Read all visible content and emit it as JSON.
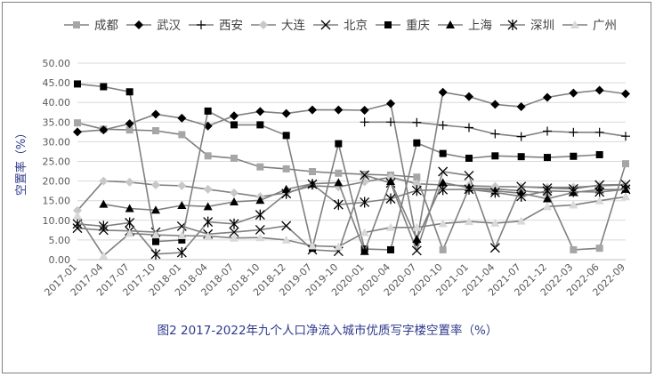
{
  "caption": "图2 2017-2022年九个人口净流入城市优质写字楼空置率（%）",
  "chart_data": {
    "type": "line",
    "title": "",
    "xlabel": "",
    "ylabel": "空置率（%）",
    "ylim": [
      0,
      50
    ],
    "yticks": [
      "0.00",
      "5.00",
      "10.00",
      "15.00",
      "20.00",
      "25.00",
      "30.00",
      "35.00",
      "40.00",
      "45.00",
      "50.00"
    ],
    "grid": true,
    "legend_position": "top",
    "categories": [
      "2017-01",
      "2017-04",
      "2017-07",
      "2017-10",
      "2018-01",
      "2018-04",
      "2018-07",
      "2018-10",
      "2018-12",
      "2019-07",
      "2019-10",
      "2020-01",
      "2020-04",
      "2020-07",
      "2020-10",
      "2021-01",
      "2021-04",
      "2021-07",
      "2021-12",
      "2022-03",
      "2022-06",
      "2022-09"
    ],
    "series": [
      {
        "name": "成都",
        "marker": "square",
        "color": "#a6a6a6",
        "values": [
          34.8,
          33.2,
          33.0,
          32.8,
          31.8,
          26.4,
          25.8,
          23.6,
          23.1,
          22.4,
          22.0,
          21.7,
          21.5,
          21.0,
          2.5,
          18.2,
          18.0,
          17.5,
          17.0,
          2.5,
          2.9,
          24.4
        ]
      },
      {
        "name": "武汉",
        "marker": "diamond",
        "color": "#000000",
        "values": [
          32.5,
          33.0,
          34.6,
          37.0,
          36.0,
          34.0,
          36.6,
          37.7,
          37.2,
          38.1,
          38.1,
          38.0,
          39.7,
          4.5,
          42.6,
          41.5,
          39.5,
          38.9,
          41.3,
          42.4,
          43.1,
          42.2
        ]
      },
      {
        "name": "西安",
        "marker": "plus",
        "color": "#000000",
        "values": [
          null,
          null,
          null,
          null,
          null,
          null,
          null,
          null,
          null,
          null,
          null,
          35.0,
          35.0,
          34.9,
          34.2,
          33.6,
          32.0,
          31.3,
          32.7,
          32.4,
          32.4,
          31.4
        ]
      },
      {
        "name": "大连",
        "marker": "diamond",
        "color": "#c8c8c8",
        "values": [
          12.5,
          20.0,
          19.7,
          19.0,
          18.8,
          17.9,
          17.0,
          16.0,
          17.0,
          18.8,
          18.5,
          19.8,
          21.0,
          19.3,
          19.0,
          18.8,
          18.6,
          18.5,
          18.4,
          18.4,
          18.8,
          19.0
        ]
      },
      {
        "name": "北京",
        "marker": "x",
        "color": "#000000",
        "values": [
          8.0,
          7.5,
          7.3,
          7.0,
          8.5,
          6.5,
          7.0,
          7.6,
          8.6,
          2.5,
          2.1,
          21.5,
          19.5,
          2.3,
          22.4,
          21.4,
          3.0,
          18.6,
          18.2,
          18.0,
          19.0,
          19.1
        ]
      },
      {
        "name": "重庆",
        "marker": "square",
        "color": "#000000",
        "values": [
          44.7,
          44.0,
          42.7,
          4.6,
          5.0,
          37.8,
          34.3,
          34.3,
          31.6,
          2.9,
          29.5,
          2.7,
          2.5,
          29.7,
          27.0,
          25.8,
          26.4,
          26.2,
          26.0,
          26.3,
          26.7,
          null
        ]
      },
      {
        "name": "上海",
        "marker": "triangle",
        "color": "#000000",
        "values": [
          null,
          14.1,
          13.0,
          12.6,
          13.8,
          13.5,
          14.7,
          15.1,
          17.9,
          19.3,
          19.6,
          2.1,
          19.9,
          5.2,
          19.6,
          18.3,
          17.5,
          16.9,
          15.5,
          17.1,
          17.8,
          17.9
        ]
      },
      {
        "name": "深圳",
        "marker": "asterisk",
        "color": "#000000",
        "values": [
          9.1,
          8.5,
          9.4,
          1.4,
          1.8,
          9.6,
          9.1,
          11.4,
          16.8,
          19.2,
          14.0,
          14.6,
          15.5,
          17.6,
          17.8,
          17.9,
          17.1,
          16.1,
          17.5,
          17.3,
          17.2,
          17.9
        ]
      },
      {
        "name": "广州",
        "marker": "triangle",
        "color": "#d9d9d9",
        "values": [
          11.2,
          1.0,
          6.7,
          6.3,
          6.1,
          6.0,
          5.5,
          5.6,
          5.0,
          3.5,
          3.3,
          6.9,
          8.2,
          8.2,
          9.2,
          9.7,
          9.3,
          9.8,
          13.5,
          13.9,
          15.0,
          16.0
        ]
      }
    ]
  }
}
